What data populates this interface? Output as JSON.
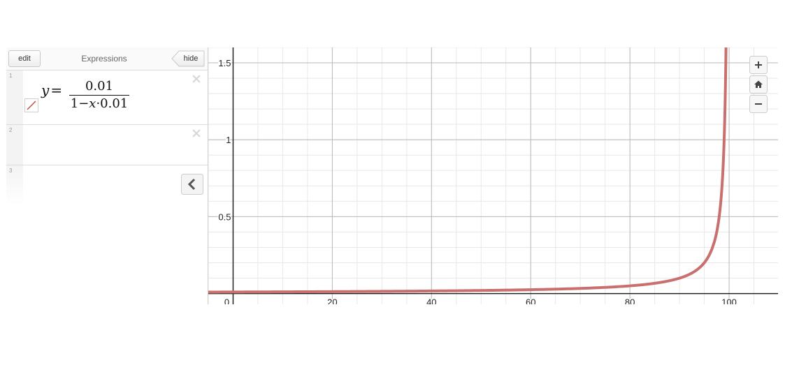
{
  "header": {
    "edit_label": "edit",
    "title": "Expressions",
    "hide_label": "hide"
  },
  "expressions": [
    {
      "index": "1",
      "lhs": "y",
      "numerator": "0.01",
      "den_a": "1",
      "den_var": "x",
      "den_b": "0.01",
      "color": "#c0504d"
    },
    {
      "index": "2"
    },
    {
      "index": "3"
    }
  ],
  "icons": {
    "delete": "close-icon",
    "collapse": "chevron-left-icon",
    "zoom_in": "plus-icon",
    "home": "home-icon",
    "zoom_out": "minus-icon"
  },
  "chart_data": {
    "type": "line",
    "function": "y = 0.01 / (1 - x·0.01)",
    "xlim": [
      -5,
      110
    ],
    "ylim": [
      -0.07,
      1.6
    ],
    "x_major_ticks": [
      0,
      20,
      40,
      60,
      80,
      100
    ],
    "x_tick_labels": [
      "0",
      "20",
      "40",
      "60",
      "80",
      "100"
    ],
    "y_major_ticks": [
      0.5,
      1,
      1.5
    ],
    "y_tick_labels": [
      "0.5",
      "1",
      "1.5"
    ],
    "x_minor_step": 5,
    "y_minor_step": 0.1,
    "grid": true,
    "series_color": "#c9706f",
    "sample_points": [
      {
        "x": 0,
        "y": 0.01
      },
      {
        "x": 50,
        "y": 0.02
      },
      {
        "x": 80,
        "y": 0.05
      },
      {
        "x": 90,
        "y": 0.1
      },
      {
        "x": 95,
        "y": 0.2
      },
      {
        "x": 98,
        "y": 0.5
      },
      {
        "x": 99,
        "y": 1.0
      },
      {
        "x": 99.4,
        "y": 1.67
      }
    ]
  }
}
